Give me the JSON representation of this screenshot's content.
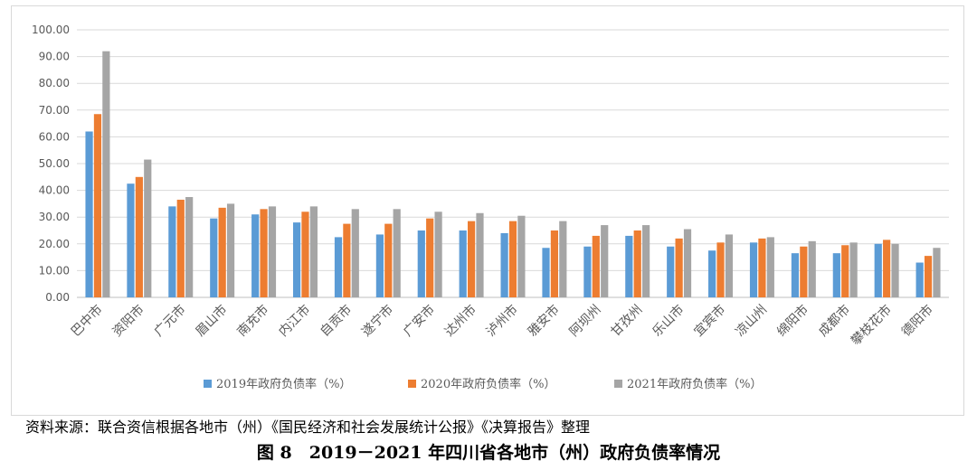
{
  "chart_data": {
    "type": "bar",
    "categories": [
      "巴中市",
      "资阳市",
      "广元市",
      "眉山市",
      "南充市",
      "内江市",
      "自贡市",
      "遂宁市",
      "广安市",
      "达州市",
      "泸州市",
      "雅安市",
      "阿坝州",
      "甘孜州",
      "乐山市",
      "宜宾市",
      "凉山州",
      "绵阳市",
      "成都市",
      "攀枝花市",
      "德阳市"
    ],
    "series": [
      {
        "name": "2019年政府负债率（%）",
        "color": "#5b9bd5",
        "values": [
          62.0,
          42.5,
          34.0,
          29.5,
          31.0,
          28.0,
          22.5,
          23.5,
          25.0,
          25.0,
          24.0,
          18.5,
          19.0,
          23.0,
          19.0,
          17.5,
          20.5,
          16.5,
          16.5,
          20.0,
          13.0
        ]
      },
      {
        "name": "2020年政府负债率（%）",
        "color": "#ed7d31",
        "values": [
          68.5,
          45.0,
          36.5,
          33.5,
          33.0,
          32.0,
          27.5,
          27.5,
          29.5,
          28.5,
          28.5,
          25.0,
          23.0,
          25.0,
          22.0,
          20.5,
          22.0,
          19.0,
          19.5,
          21.5,
          15.5
        ]
      },
      {
        "name": "2021年政府负债率（%）",
        "color": "#a5a5a5",
        "values": [
          92.0,
          51.5,
          37.5,
          35.0,
          34.0,
          34.0,
          33.0,
          33.0,
          32.0,
          31.5,
          30.5,
          28.5,
          27.0,
          27.0,
          25.5,
          23.5,
          22.5,
          21.0,
          20.5,
          20.0,
          18.5
        ]
      }
    ],
    "yticks": [
      "0.00",
      "10.00",
      "20.00",
      "30.00",
      "40.00",
      "50.00",
      "60.00",
      "70.00",
      "80.00",
      "90.00",
      "100.00"
    ],
    "ylim": [
      0,
      100
    ],
    "grid": true,
    "legend_position": "bottom",
    "title": "",
    "xlabel": "",
    "ylabel": ""
  },
  "source_note": "资料来源：联合资信根据各地市（州）《国民经济和社会发展统计公报》《决算报告》整理",
  "figure_caption": "图 8　2019－2021 年四川省各地市（州）政府负债率情况"
}
